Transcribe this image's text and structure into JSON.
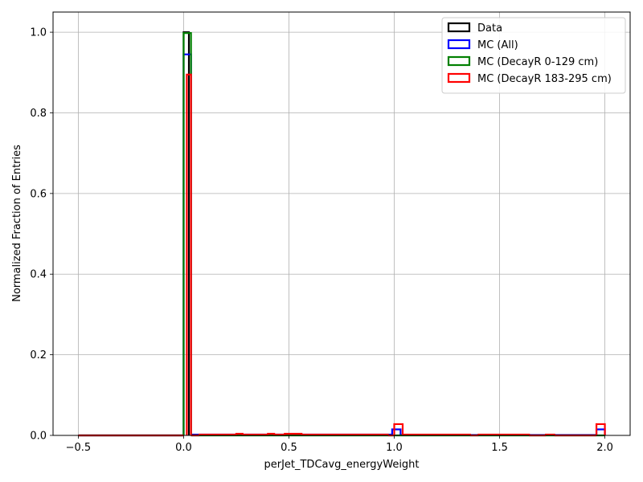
{
  "chart_data": {
    "type": "histogram",
    "xlabel": "perJet_TDCavg_energyWeight",
    "ylabel": "Normalized Fraction of Entries",
    "xlim": [
      -0.62,
      2.12
    ],
    "ylim": [
      0,
      1.05
    ],
    "xticks": [
      -0.5,
      0.0,
      0.5,
      1.0,
      1.5,
      2.0
    ],
    "xtick_labels": [
      "−0.5",
      "0.0",
      "0.5",
      "1.0",
      "1.5",
      "2.0"
    ],
    "yticks": [
      0.0,
      0.2,
      0.4,
      0.6,
      0.8,
      1.0
    ],
    "ytick_labels": [
      "0.0",
      "0.2",
      "0.4",
      "0.6",
      "0.8",
      "1.0"
    ],
    "grid": true,
    "legend_position": "top-right",
    "histtype": "step",
    "series": [
      {
        "name": "Data",
        "color": "#000000",
        "bins": [
          {
            "x0": 0.0,
            "x1": 0.025,
            "y": 1.0
          }
        ]
      },
      {
        "name": "MC (All)",
        "color": "#0000ff",
        "bins": [
          {
            "x0": -0.5,
            "x1": 0.0,
            "y": 0.0
          },
          {
            "x0": 0.0,
            "x1": 0.035,
            "y": 0.945
          },
          {
            "x0": 0.035,
            "x1": 0.99,
            "y": 0.002
          },
          {
            "x0": 0.99,
            "x1": 1.03,
            "y": 0.015
          },
          {
            "x0": 1.03,
            "x1": 1.96,
            "y": 0.001
          },
          {
            "x0": 1.96,
            "x1": 2.0,
            "y": 0.015
          }
        ]
      },
      {
        "name": "MC (DecayR 0-129 cm)",
        "color": "#008000",
        "bins": [
          {
            "x0": -0.5,
            "x1": 0.0,
            "y": 0.0
          },
          {
            "x0": 0.0,
            "x1": 0.035,
            "y": 0.998
          },
          {
            "x0": 0.035,
            "x1": 2.0,
            "y": 0.0
          }
        ]
      },
      {
        "name": "MC (DecayR 183-295 cm)",
        "color": "#ff0000",
        "bins": [
          {
            "x0": -0.5,
            "x1": 0.0,
            "y": 0.0
          },
          {
            "x0": 0.015,
            "x1": 0.035,
            "y": 0.895
          },
          {
            "x0": 0.035,
            "x1": 0.075,
            "y": 0.0
          },
          {
            "x0": 0.075,
            "x1": 0.25,
            "y": 0.002
          },
          {
            "x0": 0.25,
            "x1": 0.28,
            "y": 0.004
          },
          {
            "x0": 0.28,
            "x1": 0.4,
            "y": 0.002
          },
          {
            "x0": 0.4,
            "x1": 0.43,
            "y": 0.004
          },
          {
            "x0": 0.43,
            "x1": 0.48,
            "y": 0.002
          },
          {
            "x0": 0.48,
            "x1": 0.56,
            "y": 0.004
          },
          {
            "x0": 0.56,
            "x1": 0.97,
            "y": 0.002
          },
          {
            "x0": 0.97,
            "x1": 1.0,
            "y": 0.0
          },
          {
            "x0": 1.0,
            "x1": 1.04,
            "y": 0.028
          },
          {
            "x0": 1.04,
            "x1": 1.36,
            "y": 0.002
          },
          {
            "x0": 1.36,
            "x1": 1.4,
            "y": 0.0
          },
          {
            "x0": 1.4,
            "x1": 1.64,
            "y": 0.002
          },
          {
            "x0": 1.64,
            "x1": 1.72,
            "y": 0.0
          },
          {
            "x0": 1.72,
            "x1": 1.76,
            "y": 0.002
          },
          {
            "x0": 1.76,
            "x1": 1.96,
            "y": 0.0
          },
          {
            "x0": 1.96,
            "x1": 2.0,
            "y": 0.028
          }
        ]
      }
    ]
  }
}
